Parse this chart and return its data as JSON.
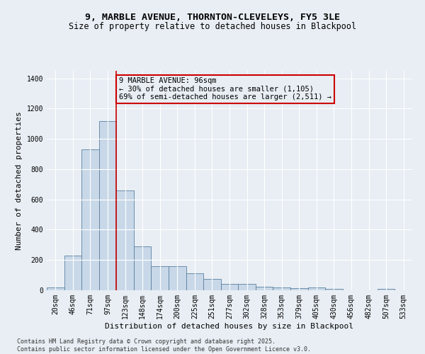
{
  "title_line1": "9, MARBLE AVENUE, THORNTON-CLEVELEYS, FY5 3LE",
  "title_line2": "Size of property relative to detached houses in Blackpool",
  "xlabel": "Distribution of detached houses by size in Blackpool",
  "ylabel": "Number of detached properties",
  "categories": [
    "20sqm",
    "46sqm",
    "71sqm",
    "97sqm",
    "123sqm",
    "148sqm",
    "174sqm",
    "200sqm",
    "225sqm",
    "251sqm",
    "277sqm",
    "302sqm",
    "328sqm",
    "353sqm",
    "379sqm",
    "405sqm",
    "430sqm",
    "456sqm",
    "482sqm",
    "507sqm",
    "533sqm"
  ],
  "values": [
    20,
    230,
    930,
    1120,
    660,
    290,
    160,
    160,
    110,
    75,
    40,
    40,
    25,
    20,
    15,
    20,
    10,
    0,
    0,
    10,
    0
  ],
  "bar_color": "#c8d8e8",
  "bar_edge_color": "#5a7fa0",
  "vline_x": 3.5,
  "vline_color": "#cc0000",
  "annotation_text": "9 MARBLE AVENUE: 96sqm\n← 30% of detached houses are smaller (1,105)\n69% of semi-detached houses are larger (2,511) →",
  "annotation_box_color": "#cc0000",
  "ylim": [
    0,
    1450
  ],
  "yticks": [
    0,
    200,
    400,
    600,
    800,
    1000,
    1200,
    1400
  ],
  "bg_color": "#e8eef4",
  "footer_text": "Contains HM Land Registry data © Crown copyright and database right 2025.\nContains public sector information licensed under the Open Government Licence v3.0.",
  "title_fontsize": 9.5,
  "subtitle_fontsize": 8.5,
  "axis_label_fontsize": 8,
  "tick_fontsize": 7,
  "annotation_fontsize": 7.5,
  "footer_fontsize": 6
}
